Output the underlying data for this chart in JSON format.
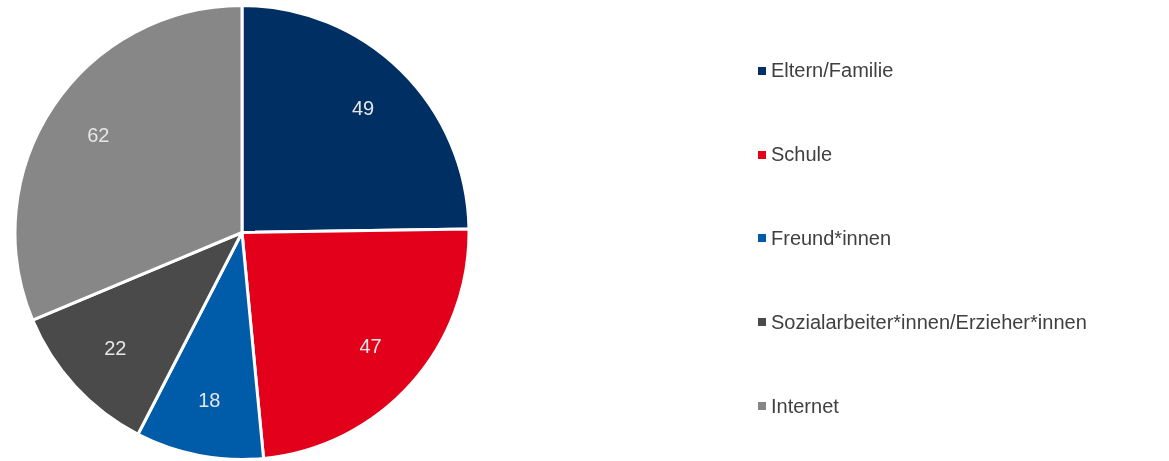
{
  "chart_data": {
    "type": "pie",
    "categories": [
      "Eltern/Familie",
      "Schule",
      "Freund*innen",
      "Sozialarbeiter*innen/Erzieher*innen",
      "Internet"
    ],
    "values": [
      49,
      47,
      18,
      22,
      62
    ],
    "colors": [
      "#003063",
      "#e2001a",
      "#005ca9",
      "#4a4a4a",
      "#878787"
    ],
    "data_labels": true,
    "legend": "right"
  }
}
